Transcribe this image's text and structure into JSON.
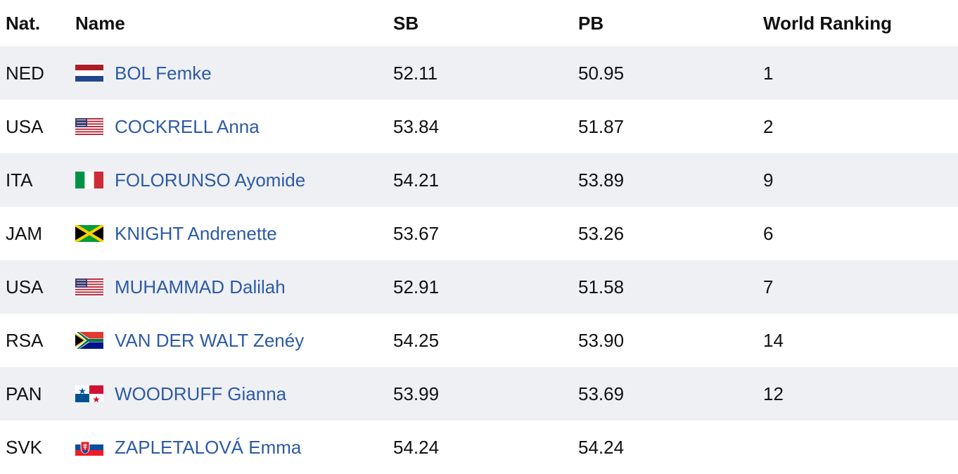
{
  "table": {
    "headers": [
      "Nat.",
      "Name",
      "SB",
      "PB",
      "World Ranking"
    ],
    "rows": [
      [
        "NED",
        "BOL Femke",
        "52.11",
        "50.95",
        "1"
      ],
      [
        "USA",
        "COCKRELL Anna",
        "53.84",
        "51.87",
        "2"
      ],
      [
        "ITA",
        "FOLORUNSO Ayomide",
        "54.21",
        "53.89",
        "9"
      ],
      [
        "JAM",
        "KNIGHT Andrenette",
        "53.67",
        "53.26",
        "6"
      ],
      [
        "USA",
        "MUHAMMAD Dalilah",
        "52.91",
        "51.58",
        "7"
      ],
      [
        "RSA",
        "VAN DER WALT Zenéy",
        "54.25",
        "53.90",
        "14"
      ],
      [
        "PAN",
        "WOODRUFF Gianna",
        "53.99",
        "53.69",
        "12"
      ],
      [
        "SVK",
        "ZAPLETALOVÁ Emma",
        "54.24",
        "54.24",
        null
      ]
    ]
  }
}
